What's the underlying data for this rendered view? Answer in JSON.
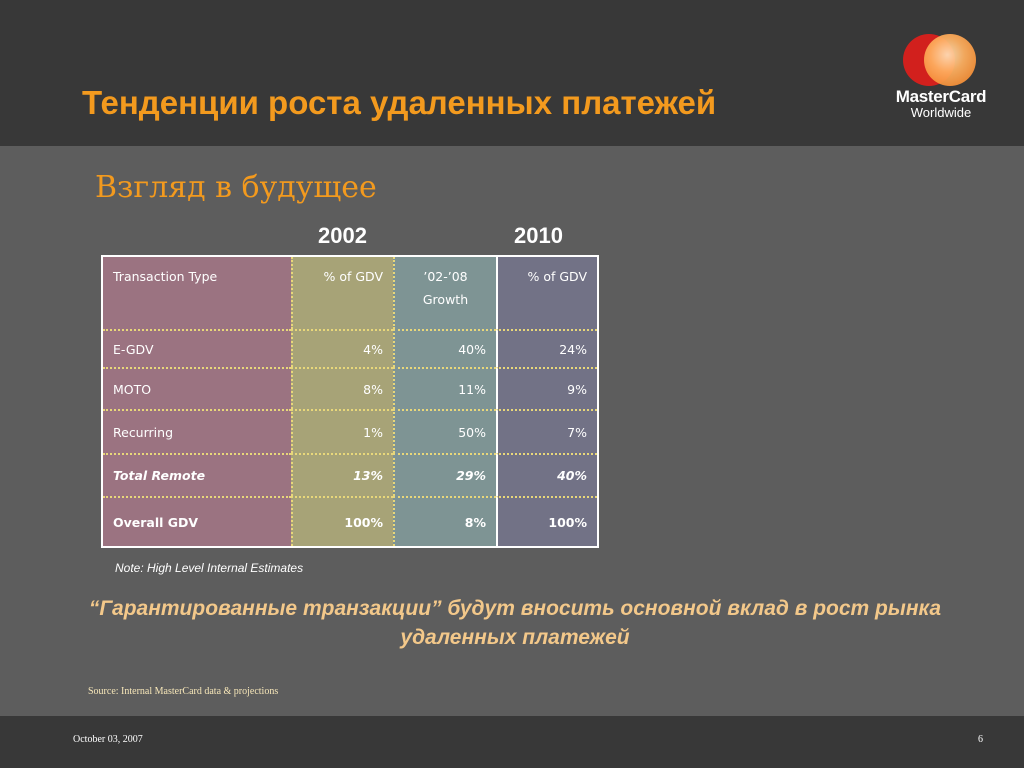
{
  "header": {
    "title": "Тенденции роста удаленных платежей",
    "logo": {
      "brand": "MasterCard",
      "tagline": "Worldwide"
    }
  },
  "subtitle": "Взгляд в будущее",
  "years": {
    "left": "2002",
    "right": "2010"
  },
  "table": {
    "columns": [
      "Transaction Type",
      "% of GDV",
      "’02-’08 Growth",
      "% of GDV"
    ],
    "rows": [
      [
        "E-GDV",
        "4%",
        "40%",
        "24%"
      ],
      [
        "MOTO",
        "8%",
        "11%",
        "9%"
      ],
      [
        "Recurring",
        "1%",
        "50%",
        "7%"
      ],
      [
        "Total Remote",
        "13%",
        "29%",
        "40%"
      ],
      [
        "Overall GDV",
        "100%",
        "8%",
        "100%"
      ]
    ]
  },
  "note": "Note:  High Level Internal Estimates",
  "quote": "“Гарантированные транзакции” будут вносить основной вклад в рост рынка удаленных платежей",
  "source": "Source:  Internal MasterCard data & projections",
  "footer": {
    "date": "October 03, 2007",
    "page_number": "6"
  },
  "colors": {
    "accent_orange": "#f39a1e",
    "col_type": "#9b7381",
    "col_2002": "#a7a377",
    "col_growth": "#7e9494",
    "col_2010": "#727286"
  }
}
